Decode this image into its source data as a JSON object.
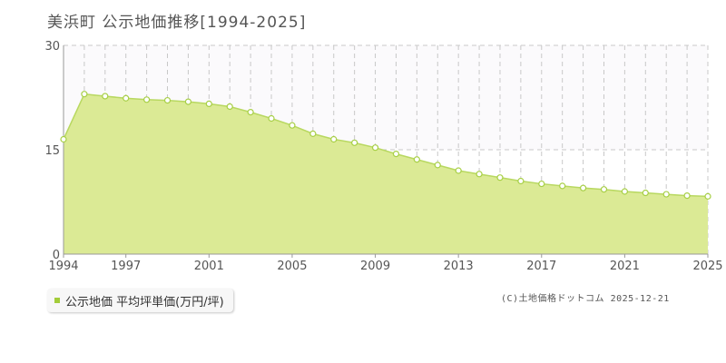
{
  "page": {
    "title": "美浜町 公示地価推移[1994-2025]",
    "legend_label": "公示地価 平均坪単価(万円/坪)",
    "credit": "(C)土地価格ドットコム 2025-12-21"
  },
  "colors": {
    "area_fill": "#dbea95",
    "line": "#b8d860",
    "marker_stroke": "#a7cf45",
    "legend_swatch": "#a3cc3a",
    "grid": "#c8c8c8",
    "axis": "#999999"
  },
  "chart_data": {
    "type": "area",
    "x": [
      1994,
      1995,
      1996,
      1997,
      1998,
      1999,
      2000,
      2001,
      2002,
      2003,
      2004,
      2005,
      2006,
      2007,
      2008,
      2009,
      2010,
      2011,
      2012,
      2013,
      2014,
      2015,
      2016,
      2017,
      2018,
      2019,
      2020,
      2021,
      2022,
      2023,
      2024,
      2025
    ],
    "series": [
      {
        "name": "公示地価 平均坪単価(万円/坪)",
        "values": [
          16.5,
          23.0,
          22.7,
          22.4,
          22.2,
          22.1,
          21.9,
          21.6,
          21.2,
          20.4,
          19.5,
          18.5,
          17.3,
          16.5,
          16.0,
          15.3,
          14.4,
          13.6,
          12.8,
          12.0,
          11.5,
          11.0,
          10.5,
          10.1,
          9.8,
          9.5,
          9.3,
          9.0,
          8.8,
          8.6,
          8.4,
          8.3
        ]
      }
    ],
    "xticks": [
      "1994",
      "1997",
      "2001",
      "2005",
      "2009",
      "2013",
      "2017",
      "2021",
      "2025"
    ],
    "yticks": [
      "0",
      "15",
      "30"
    ],
    "ylim": [
      0,
      30
    ],
    "xlim": [
      1994,
      2025
    ],
    "grid": true
  }
}
